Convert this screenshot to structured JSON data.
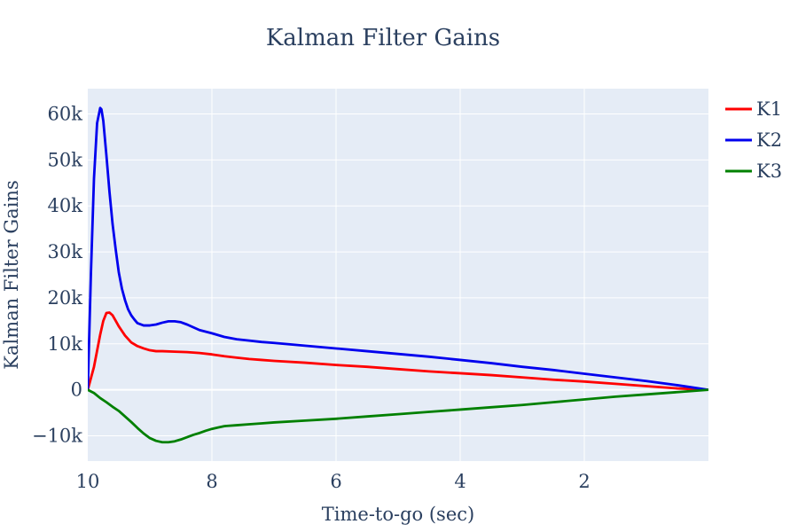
{
  "chart_data": {
    "type": "line",
    "title": "Kalman Filter Gains",
    "xlabel": "Time-to-go (sec)",
    "ylabel": "Kalman Filter Gains",
    "xlim": [
      10,
      0
    ],
    "x_reversed": true,
    "ylim": [
      -15500,
      65500
    ],
    "x_ticks": [
      10,
      8,
      6,
      4,
      2
    ],
    "x_tick_labels": [
      "10",
      "8",
      "6",
      "4",
      "2"
    ],
    "y_ticks": [
      -10000,
      0,
      10000,
      20000,
      30000,
      40000,
      50000,
      60000
    ],
    "y_tick_labels": [
      "−10k",
      "0",
      "10k",
      "20k",
      "30k",
      "40k",
      "50k",
      "60k"
    ],
    "grid": true,
    "legend_position": "top-right",
    "series": [
      {
        "name": "K1",
        "color": "#ff0000",
        "x": [
          10,
          9.9,
          9.8,
          9.75,
          9.7,
          9.65,
          9.6,
          9.55,
          9.5,
          9.45,
          9.4,
          9.3,
          9.2,
          9.1,
          9,
          8.9,
          8.8,
          8.6,
          8.4,
          8.2,
          8,
          7.8,
          7.6,
          7.4,
          7.2,
          7,
          6.5,
          6,
          5.5,
          5,
          4.5,
          4,
          3.5,
          3,
          2.5,
          2,
          1.5,
          1,
          0.5,
          0
        ],
        "y": [
          0,
          5000,
          12000,
          15000,
          16700,
          16800,
          16200,
          15000,
          13800,
          12800,
          11800,
          10300,
          9500,
          9000,
          8600,
          8400,
          8400,
          8300,
          8200,
          8000,
          7700,
          7300,
          7000,
          6700,
          6500,
          6300,
          5900,
          5400,
          5000,
          4500,
          4000,
          3600,
          3200,
          2700,
          2200,
          1800,
          1300,
          800,
          300,
          0
        ]
      },
      {
        "name": "K2",
        "color": "#0000ee",
        "x": [
          10,
          9.98,
          9.95,
          9.9,
          9.85,
          9.8,
          9.78,
          9.75,
          9.7,
          9.65,
          9.6,
          9.55,
          9.5,
          9.45,
          9.4,
          9.35,
          9.3,
          9.25,
          9.2,
          9.1,
          9,
          8.9,
          8.8,
          8.7,
          8.6,
          8.5,
          8.4,
          8.3,
          8.2,
          8,
          7.8,
          7.6,
          7.4,
          7.2,
          7,
          6.5,
          6,
          5.5,
          5,
          4.5,
          4,
          3.5,
          3,
          2.5,
          2,
          1.5,
          1,
          0.5,
          0
        ],
        "y": [
          0,
          10000,
          25000,
          46000,
          58000,
          61300,
          61000,
          58500,
          51000,
          43000,
          36000,
          30500,
          25500,
          22000,
          19500,
          17500,
          16200,
          15300,
          14500,
          14000,
          14000,
          14200,
          14600,
          14900,
          14900,
          14700,
          14200,
          13600,
          13000,
          12300,
          11500,
          11000,
          10700,
          10400,
          10200,
          9600,
          9000,
          8400,
          7800,
          7200,
          6500,
          5800,
          5000,
          4300,
          3500,
          2700,
          1900,
          1000,
          0
        ]
      },
      {
        "name": "K3",
        "color": "#008000",
        "x": [
          10,
          9.9,
          9.8,
          9.7,
          9.6,
          9.5,
          9.4,
          9.3,
          9.2,
          9.1,
          9,
          8.9,
          8.8,
          8.7,
          8.6,
          8.5,
          8.4,
          8.3,
          8.2,
          8.1,
          8,
          7.9,
          7.8,
          7.6,
          7.4,
          7.2,
          7,
          6.5,
          6,
          5.5,
          5,
          4.5,
          4,
          3.5,
          3,
          2.5,
          2,
          1.5,
          1,
          0.5,
          0
        ],
        "y": [
          0,
          -700,
          -1800,
          -2700,
          -3700,
          -4600,
          -5800,
          -7000,
          -8300,
          -9500,
          -10500,
          -11100,
          -11400,
          -11400,
          -11200,
          -10800,
          -10300,
          -9800,
          -9400,
          -8900,
          -8500,
          -8200,
          -7900,
          -7700,
          -7500,
          -7300,
          -7100,
          -6700,
          -6300,
          -5800,
          -5300,
          -4800,
          -4300,
          -3800,
          -3300,
          -2700,
          -2100,
          -1500,
          -1000,
          -500,
          0
        ]
      }
    ]
  }
}
